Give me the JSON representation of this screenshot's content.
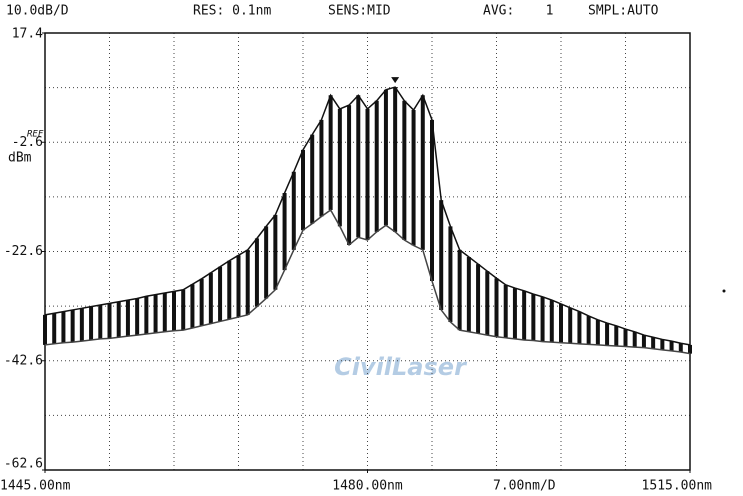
{
  "header": {
    "scale": "10.0dB/D",
    "res": "RES: 0.1nm",
    "sens": "SENS:MID",
    "avg": "AVG:    1",
    "smpl": "SMPL:AUTO",
    "ref": "REF",
    "unit": "dBm",
    "span": "7.00nm/D",
    "watermark": "CivilLaser"
  },
  "chart_data": {
    "type": "range",
    "x": [
      1445,
      1446,
      1447,
      1448,
      1449,
      1450,
      1451,
      1452,
      1453,
      1454,
      1455,
      1456,
      1457,
      1458,
      1459,
      1460,
      1461,
      1462,
      1463,
      1464,
      1465,
      1466,
      1467,
      1468,
      1469,
      1470,
      1471,
      1472,
      1473,
      1474,
      1475,
      1476,
      1477,
      1478,
      1479,
      1480,
      1481,
      1482,
      1483,
      1484,
      1485,
      1486,
      1487,
      1488,
      1489,
      1490,
      1491,
      1492,
      1493,
      1494,
      1495,
      1496,
      1497,
      1498,
      1499,
      1500,
      1501,
      1502,
      1503,
      1504,
      1505,
      1506,
      1507,
      1508,
      1509,
      1510,
      1511,
      1512,
      1513,
      1514,
      1515
    ],
    "series": [
      {
        "color": "#111111",
        "values": [
          -34.2,
          -33.9,
          -33.6,
          -33.3,
          -33,
          -32.7,
          -32.4,
          -32.1,
          -31.8,
          -31.5,
          -31.2,
          -30.8,
          -30.5,
          -30.2,
          -29.9,
          -29.6,
          -28.6,
          -27.6,
          -26.5,
          -25.4,
          -24.3,
          -23.3,
          -22.3,
          -20.2,
          -18,
          -15.9,
          -11.9,
          -8,
          -4,
          -1.2,
          1.5,
          6,
          3.5,
          4.2,
          6,
          3.5,
          5,
          7,
          7.5,
          5,
          3.3,
          6,
          1.5,
          -13.2,
          -18,
          -22.3,
          -23.6,
          -24.9,
          -26.2,
          -27.5,
          -28.7,
          -29.3,
          -29.8,
          -30.4,
          -30.9,
          -31.5,
          -32.2,
          -32.9,
          -33.6,
          -34.4,
          -35.1,
          -35.7,
          -36.2,
          -36.8,
          -37.3,
          -37.9,
          -38.3,
          -38.7,
          -39,
          -39.4,
          -39.7
        ]
      },
      {
        "color": "#444444",
        "values": [
          -39.7,
          -39.5,
          -39.3,
          -39.2,
          -39,
          -38.8,
          -38.6,
          -38.5,
          -38.3,
          -38.1,
          -37.9,
          -37.7,
          -37.5,
          -37.3,
          -37.1,
          -37,
          -36.6,
          -36.2,
          -35.8,
          -35.4,
          -35,
          -34.6,
          -34.2,
          -32.7,
          -31.2,
          -29.6,
          -26,
          -22.3,
          -18.7,
          -17.5,
          -16.2,
          -15,
          -18,
          -21.4,
          -20,
          -20.5,
          -19,
          -17.8,
          -19,
          -20.5,
          -21.5,
          -22.3,
          -28,
          -33.3,
          -35.5,
          -37,
          -37.3,
          -37.6,
          -37.9,
          -38.2,
          -38.4,
          -38.6,
          -38.8,
          -38.9,
          -39.1,
          -39.2,
          -39.3,
          -39.4,
          -39.5,
          -39.6,
          -39.7,
          -39.8,
          -39.9,
          -40,
          -40.1,
          -40.2,
          -40.4,
          -40.6,
          -40.8,
          -41,
          -41.3
        ]
      }
    ],
    "xlim": [
      1445,
      1515
    ],
    "xticks": [
      {
        "value": 1445,
        "label": "1445.00nm"
      },
      {
        "value": 1480,
        "label": "1480.00nm"
      },
      {
        "value": 1515,
        "label": "1515.00nm"
      }
    ],
    "ylim": [
      -62.6,
      17.4
    ],
    "yticks": [
      17.4,
      -2.6,
      -22.6,
      -42.6,
      -62.6
    ],
    "xstep": 7,
    "ystep": 10,
    "grid": true
  }
}
